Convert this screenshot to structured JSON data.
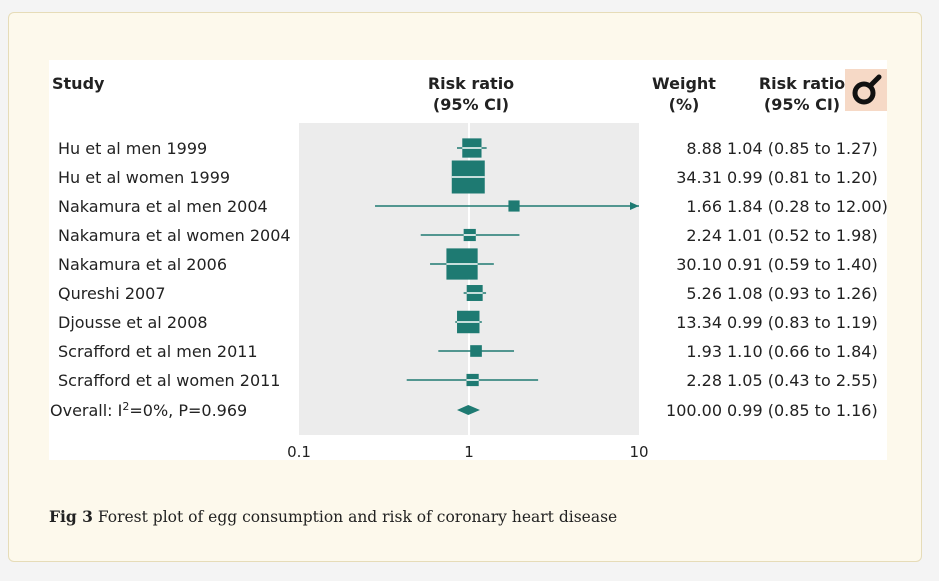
{
  "figure": {
    "caption_label": "Fig 3",
    "caption_text": "Forest plot of egg consumption and risk of coronary heart disease"
  },
  "headers": {
    "study": "Study",
    "rr_line1": "Risk ratio",
    "rr_line2": "(95% CI)",
    "weight_line1": "Weight",
    "weight_line2": "(%)",
    "rrci_line1": "Risk ratio",
    "rrci_line2": "(95% CI)"
  },
  "colors": {
    "accent": "#1e7a72",
    "panel": "#ececec",
    "background": "#fdf9ec",
    "logo_bg": "#f6d9c6"
  },
  "logo": {
    "icon": "bmj-magnifier-icon"
  },
  "chart_data": {
    "type": "forest",
    "x_scale": "log",
    "xlim": [
      0.1,
      10
    ],
    "x_ticks": [
      "0.1",
      "1",
      "10"
    ],
    "reference_line": 1,
    "studies": [
      {
        "name": "Hu et al men 1999",
        "rr": 1.04,
        "lo": 0.85,
        "hi": 1.27,
        "weight": "8.88",
        "ci_text": "1.04 (0.85 to 1.27)"
      },
      {
        "name": "Hu et al women 1999",
        "rr": 0.99,
        "lo": 0.81,
        "hi": 1.2,
        "weight": "34.31",
        "ci_text": "0.99 (0.81 to 1.20)"
      },
      {
        "name": "Nakamura et al men 2004",
        "rr": 1.84,
        "lo": 0.28,
        "hi": 12.0,
        "weight": "1.66",
        "ci_text": "1.84 (0.28 to 12.00)"
      },
      {
        "name": "Nakamura et al women 2004",
        "rr": 1.01,
        "lo": 0.52,
        "hi": 1.98,
        "weight": "2.24",
        "ci_text": "1.01 (0.52 to 1.98)"
      },
      {
        "name": "Nakamura et al 2006",
        "rr": 0.91,
        "lo": 0.59,
        "hi": 1.4,
        "weight": "30.10",
        "ci_text": "0.91 (0.59 to 1.40)"
      },
      {
        "name": "Qureshi 2007",
        "rr": 1.08,
        "lo": 0.93,
        "hi": 1.26,
        "weight": "5.26",
        "ci_text": "1.08 (0.93 to 1.26)"
      },
      {
        "name": "Djousse et al 2008",
        "rr": 0.99,
        "lo": 0.83,
        "hi": 1.19,
        "weight": "13.34",
        "ci_text": "0.99 (0.83 to 1.19)"
      },
      {
        "name": "Scrafford et al men 2011",
        "rr": 1.1,
        "lo": 0.66,
        "hi": 1.84,
        "weight": "1.93",
        "ci_text": "1.10 (0.66 to 1.84)"
      },
      {
        "name": "Scrafford et al women 2011",
        "rr": 1.05,
        "lo": 0.43,
        "hi": 2.55,
        "weight": "2.28",
        "ci_text": "1.05 (0.43 to 2.55)"
      }
    ],
    "overall": {
      "label_prefix": "Overall: I",
      "label_sup": "2",
      "label_suffix": "=0%, P=0.969",
      "rr": 0.99,
      "lo": 0.85,
      "hi": 1.16,
      "weight": "100.00",
      "ci_text": "0.99 (0.85 to 1.16)"
    }
  }
}
